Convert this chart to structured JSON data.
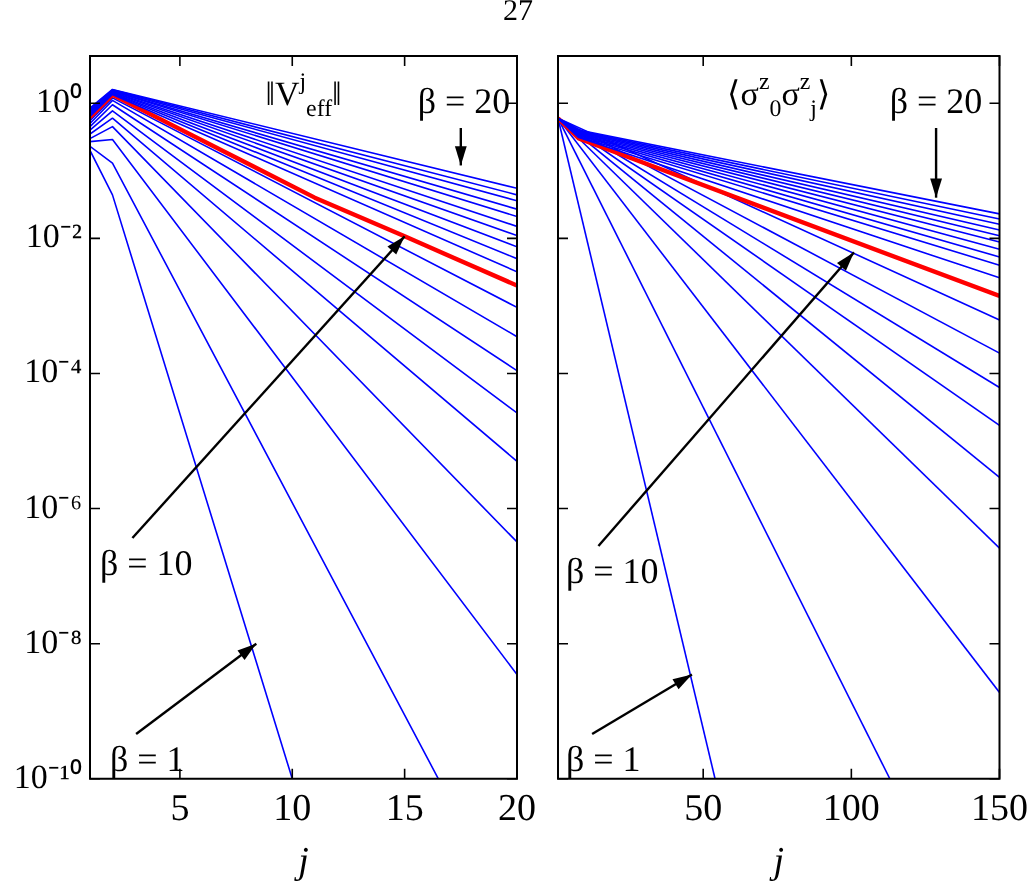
{
  "chart_data": [
    {
      "type": "line",
      "title": "‖V$^{j}$$_{eff}$‖",
      "xlabel": "j",
      "log": "y",
      "grid": false,
      "legend": false,
      "xlim": [
        1,
        20
      ],
      "xticks": [
        5,
        10,
        15,
        20
      ],
      "ylim": [
        1e-10,
        5
      ],
      "yticks": [
        {
          "value": 1,
          "label": "10⁰"
        },
        {
          "value": 0.01,
          "label": "10⁻²"
        },
        {
          "value": 0.0001,
          "label": "10⁻⁴"
        },
        {
          "value": 1e-06,
          "label": "10⁻⁶"
        },
        {
          "value": 1e-08,
          "label": "10⁻⁸"
        },
        {
          "value": 1e-10,
          "label": "10⁻¹⁰"
        }
      ],
      "annotations": [
        "27",
        {
          "text": "β = 20",
          "x": 17.5,
          "y": 0.12
        },
        {
          "text": "β = 10",
          "x": 15,
          "y": 0.0107
        },
        {
          "text": "β = 1",
          "x": 8.4,
          "y": 1e-08
        }
      ],
      "series": [
        {
          "color": "#0000ff",
          "x": [
            1,
            2,
            20
          ],
          "values": [
            0.85,
            1.6,
            0.055
          ]
        },
        {
          "color": "#0000ff",
          "x": [
            1,
            2,
            20
          ],
          "values": [
            0.83,
            1.58,
            0.044
          ]
        },
        {
          "color": "#0000ff",
          "x": [
            1,
            2,
            20
          ],
          "values": [
            0.8,
            1.55,
            0.036
          ]
        },
        {
          "color": "#0000ff",
          "x": [
            1,
            2,
            20
          ],
          "values": [
            0.78,
            1.52,
            0.027
          ]
        },
        {
          "color": "#0000ff",
          "x": [
            1,
            2,
            20
          ],
          "values": [
            0.75,
            1.5,
            0.021
          ]
        },
        {
          "color": "#0000ff",
          "x": [
            1,
            2,
            20
          ],
          "values": [
            0.72,
            1.47,
            0.015
          ]
        },
        {
          "color": "#0000ff",
          "x": [
            1,
            2,
            20
          ],
          "values": [
            0.7,
            1.44,
            0.011
          ]
        },
        {
          "color": "#0000ff",
          "x": [
            1,
            2,
            20
          ],
          "values": [
            0.68,
            1.41,
            0.0075
          ]
        },
        {
          "color": "#0000ff",
          "x": [
            1,
            2,
            20
          ],
          "values": [
            0.66,
            1.38,
            0.005
          ]
        },
        {
          "color": "#0000ff",
          "x": [
            1,
            2,
            20
          ],
          "values": [
            0.64,
            1.35,
            0.0032
          ]
        },
        {
          "color": "#ff0000",
          "x": [
            1,
            2,
            11,
            15,
            20
          ],
          "values": [
            0.62,
            1.33,
            0.04,
            0.0107,
            0.002
          ]
        },
        {
          "color": "#0000ff",
          "x": [
            1,
            2,
            20
          ],
          "values": [
            0.55,
            1.2,
            0.00095
          ]
        },
        {
          "color": "#0000ff",
          "x": [
            1,
            2,
            20
          ],
          "values": [
            0.5,
            1.1,
            0.00035
          ]
        },
        {
          "color": "#0000ff",
          "x": [
            1,
            2,
            20
          ],
          "values": [
            0.45,
            0.95,
            0.00011
          ]
        },
        {
          "color": "#0000ff",
          "x": [
            1,
            2,
            20
          ],
          "values": [
            0.4,
            0.77,
            2.6e-05
          ]
        },
        {
          "color": "#0000ff",
          "x": [
            1,
            2,
            20
          ],
          "values": [
            0.35,
            0.6,
            5e-06
          ]
        },
        {
          "color": "#0000ff",
          "x": [
            1,
            2,
            20
          ],
          "values": [
            0.3,
            0.45,
            3.2e-07
          ]
        },
        {
          "color": "#0000ff",
          "x": [
            1,
            2,
            20
          ],
          "values": [
            0.27,
            0.29,
            3.5e-09
          ]
        },
        {
          "color": "#0000ff",
          "x": [
            1,
            2,
            16.5
          ],
          "values": [
            0.23,
            0.13,
            1e-10
          ]
        },
        {
          "color": "#0000ff",
          "x": [
            1,
            2,
            10
          ],
          "values": [
            0.2,
            0.044,
            1e-10
          ]
        }
      ]
    },
    {
      "type": "line",
      "title": "⟨σ$^{z}$$_{0}$σ$^{z}$$_{j}$⟩",
      "xlabel": "j",
      "log": "y",
      "grid": false,
      "legend": false,
      "tick_labels": "x",
      "xlim": [
        1,
        150
      ],
      "xticks": [
        50,
        100,
        150
      ],
      "ylim": [
        1e-10,
        5
      ],
      "yticks": [
        1,
        0.01,
        0.0001,
        1e-06,
        1e-08,
        1e-10
      ],
      "annotations": [
        {
          "text": "β = 20",
          "x": 128.6,
          "y": 0.04
        },
        {
          "text": "β = 10",
          "x": 100.9,
          "y": 0.0062
        },
        {
          "text": "β = 1",
          "x": 46.2,
          "y": 3.5e-09
        }
      ],
      "series": [
        {
          "color": "#0000ff",
          "x": [
            1,
            8,
            150
          ],
          "values": [
            0.6,
            0.4,
            0.023
          ]
        },
        {
          "color": "#0000ff",
          "x": [
            1,
            8,
            150
          ],
          "values": [
            0.6,
            0.39,
            0.0193
          ]
        },
        {
          "color": "#0000ff",
          "x": [
            1,
            8,
            150
          ],
          "values": [
            0.6,
            0.38,
            0.0162
          ]
        },
        {
          "color": "#0000ff",
          "x": [
            1,
            8,
            150
          ],
          "values": [
            0.6,
            0.37,
            0.0133
          ]
        },
        {
          "color": "#0000ff",
          "x": [
            1,
            8,
            150
          ],
          "values": [
            0.6,
            0.36,
            0.0109
          ]
        },
        {
          "color": "#0000ff",
          "x": [
            1,
            8,
            150
          ],
          "values": [
            0.6,
            0.35,
            0.0088
          ]
        },
        {
          "color": "#0000ff",
          "x": [
            1,
            8,
            150
          ],
          "values": [
            0.6,
            0.34,
            0.0069
          ]
        },
        {
          "color": "#0000ff",
          "x": [
            1,
            8,
            150
          ],
          "values": [
            0.6,
            0.33,
            0.0053
          ]
        },
        {
          "color": "#0000ff",
          "x": [
            1,
            8,
            150
          ],
          "values": [
            0.6,
            0.32,
            0.004
          ]
        },
        {
          "color": "#0000ff",
          "x": [
            1,
            8,
            150
          ],
          "values": [
            0.6,
            0.31,
            0.0026
          ]
        },
        {
          "color": "#ff0000",
          "x": [
            1,
            8,
            150
          ],
          "values": [
            0.6,
            0.3,
            0.0014
          ]
        },
        {
          "color": "#0000ff",
          "x": [
            1,
            150
          ],
          "values": [
            0.6,
            0.00062
          ]
        },
        {
          "color": "#0000ff",
          "x": [
            1,
            150
          ],
          "values": [
            0.6,
            0.0002
          ]
        },
        {
          "color": "#0000ff",
          "x": [
            1,
            150
          ],
          "values": [
            0.6,
            6.2e-05
          ]
        },
        {
          "color": "#0000ff",
          "x": [
            1,
            150
          ],
          "values": [
            0.6,
            1.7e-05
          ]
        },
        {
          "color": "#0000ff",
          "x": [
            1,
            150
          ],
          "values": [
            0.6,
            2.9e-06
          ]
        },
        {
          "color": "#0000ff",
          "x": [
            1,
            150
          ],
          "values": [
            0.6,
            2.6e-07
          ]
        },
        {
          "color": "#0000ff",
          "x": [
            1,
            150
          ],
          "values": [
            0.6,
            1.9e-09
          ]
        },
        {
          "color": "#0000ff",
          "x": [
            1,
            113
          ],
          "values": [
            0.6,
            1e-10
          ]
        },
        {
          "color": "#0000ff",
          "x": [
            1,
            54
          ],
          "values": [
            0.6,
            1e-10
          ]
        }
      ]
    }
  ]
}
